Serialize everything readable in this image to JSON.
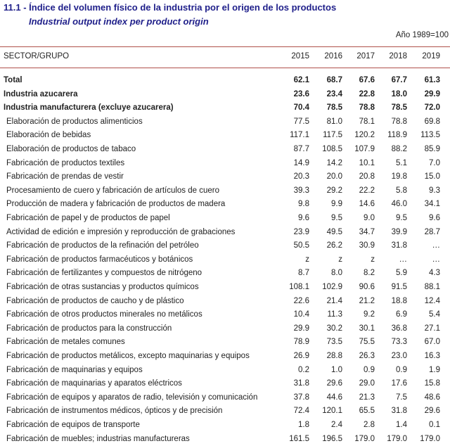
{
  "header": {
    "number": "11.1",
    "title": "Índice del volumen físico de la industria  por el origen de los productos",
    "subtitle": "Industrial output index per product origin",
    "base": "Año 1989=100"
  },
  "table": {
    "columns": [
      "SECTOR/GRUPO",
      "2015",
      "2016",
      "2017",
      "2018",
      "2019"
    ],
    "rows": [
      {
        "label": "Total",
        "bold": true,
        "values": [
          "62.1",
          "68.7",
          "67.6",
          "67.7",
          "61.3"
        ]
      },
      {
        "label": "Industria azucarera",
        "bold": true,
        "values": [
          "23.6",
          "23.4",
          "22.8",
          "18.0",
          "29.9"
        ]
      },
      {
        "label": "Industria manufacturera (excluye azucarera)",
        "bold": true,
        "values": [
          "70.4",
          "78.5",
          "78.8",
          "78.5",
          "72.0"
        ]
      },
      {
        "label": "Elaboración de productos alimenticios",
        "values": [
          "77.5",
          "81.0",
          "78.1",
          "78.8",
          "69.8"
        ]
      },
      {
        "label": "Elaboración de bebidas",
        "values": [
          "117.1",
          "117.5",
          "120.2",
          "118.9",
          "113.5"
        ]
      },
      {
        "label": "Elaboración de productos de tabaco",
        "values": [
          "87.7",
          "108.5",
          "107.9",
          "88.2",
          "85.9"
        ]
      },
      {
        "label": "Fabricación de productos textiles",
        "values": [
          "14.9",
          "14.2",
          "10.1",
          "5.1",
          "7.0"
        ]
      },
      {
        "label": "Fabricación de prendas de vestir",
        "values": [
          "20.3",
          "20.0",
          "20.8",
          "19.8",
          "15.0"
        ]
      },
      {
        "label": "Procesamiento de cuero y fabricación de artículos de cuero",
        "values": [
          "39.3",
          "29.2",
          "22.2",
          "5.8",
          "9.3"
        ]
      },
      {
        "label": "Producción de madera y fabricación de productos de madera",
        "values": [
          "9.8",
          "9.9",
          "14.6",
          "46.0",
          "34.1"
        ]
      },
      {
        "label": "Fabricación de papel y de productos de papel",
        "values": [
          "9.6",
          "9.5",
          "9.0",
          "9.5",
          "9.6"
        ]
      },
      {
        "label": "Actividad de edición e impresión y reproducción  de grabaciones",
        "values": [
          "23.9",
          "49.5",
          "34.7",
          "39.9",
          "28.7"
        ]
      },
      {
        "label": "Fabricación de productos de la refinación del petróleo",
        "values": [
          "50.5",
          "26.2",
          "30.9",
          "31.8",
          "…"
        ]
      },
      {
        "label": "Fabricación de productos farmacéuticos y botánicos",
        "values": [
          "z",
          "z",
          "z",
          "…",
          "…"
        ]
      },
      {
        "label": "Fabricación de fertilizantes y compuestos de nitrógeno",
        "values": [
          "8.7",
          "8.0",
          "8.2",
          "5.9",
          "4.3"
        ]
      },
      {
        "label": "Fabricación de otras sustancias y productos  químicos",
        "values": [
          "108.1",
          "102.9",
          "90.6",
          "91.5",
          "88.1"
        ]
      },
      {
        "label": "Fabricación de productos de caucho y de plástico",
        "values": [
          "22.6",
          "21.4",
          "21.2",
          "18.8",
          "12.4"
        ]
      },
      {
        "label": "Fabricación de otros productos minerales no metálicos",
        "values": [
          "10.4",
          "11.3",
          "9.2",
          "6.9",
          "5.4"
        ]
      },
      {
        "label": "Fabricación de productos para la construcción",
        "values": [
          "29.9",
          "30.2",
          "30.1",
          "36.8",
          "27.1"
        ]
      },
      {
        "label": "Fabricación de metales comunes",
        "values": [
          "78.9",
          "73.5",
          "75.5",
          "73.3",
          "67.0"
        ]
      },
      {
        "label": "Fabricación de productos metálicos, excepto maquinarias y equipos",
        "values": [
          "26.9",
          "28.8",
          "26.3",
          "23.0",
          "16.3"
        ]
      },
      {
        "label": "Fabricación de maquinarias y equipos",
        "values": [
          "0.2",
          "1.0",
          "0.9",
          "0.9",
          "1.9"
        ]
      },
      {
        "label": "Fabricación de maquinarias y aparatos eléctricos",
        "values": [
          "31.8",
          "29.6",
          "29.0",
          "17.6",
          "15.8"
        ]
      },
      {
        "label": "Fabricación de equipos y aparatos de radio, televisión y comunicación",
        "values": [
          "37.8",
          "44.6",
          "21.3",
          "7.5",
          "48.6"
        ]
      },
      {
        "label": "Fabricación de instrumentos médicos, ópticos y de precisión",
        "values": [
          "72.4",
          "120.1",
          "65.5",
          "31.8",
          "29.6"
        ]
      },
      {
        "label": "Fabricación de equipos de transporte",
        "values": [
          "1.8",
          "2.4",
          "2.8",
          "1.4",
          "0.1"
        ]
      },
      {
        "label": "Fabricación de muebles; industrias manufactureras",
        "values": [
          "161.5",
          "196.5",
          "179.0",
          "179.0",
          "179.0"
        ]
      }
    ]
  }
}
